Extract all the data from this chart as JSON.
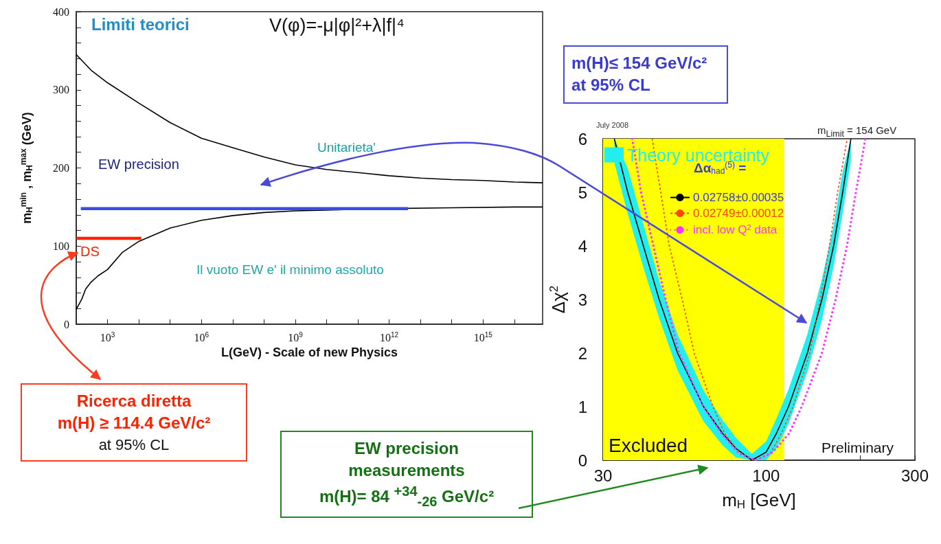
{
  "chart_data": [
    {
      "type": "line",
      "title": "Limiti teorici",
      "xlabel": "L(GeV) - Scale of new Physics",
      "ylabel": "m$_{H}$$^{min}$ , m$_{H}$$^{max}$ (GeV)",
      "log": "x",
      "xlim": [
        100,
        8e+16
      ],
      "xticks": [
        {
          "value": 100,
          "label": null
        },
        {
          "value": 1000,
          "label": "10$^{3}$"
        },
        {
          "value": 10000.0,
          "label": null
        },
        {
          "value": 100000.0,
          "label": null
        },
        {
          "value": 1000000.0,
          "label": "10$^{6}$"
        },
        {
          "value": 10000000.0,
          "label": null
        },
        {
          "value": 100000000.0,
          "label": null
        },
        {
          "value": 1000000000.0,
          "label": "10$^{9}$"
        },
        {
          "value": 10000000000.0,
          "label": null
        },
        {
          "value": 100000000000.0,
          "label": null
        },
        {
          "value": 1000000000000.0,
          "label": "10$^{12}$"
        },
        {
          "value": 10000000000000.0,
          "label": null
        },
        {
          "value": 100000000000000.0,
          "label": null
        },
        {
          "value": 1000000000000000.0,
          "label": "10$^{15}$"
        },
        {
          "value": 1e+16,
          "label": null
        }
      ],
      "ylim": [
        0,
        400
      ],
      "yticks": [
        0,
        {
          "value": 20,
          "label": null
        },
        {
          "value": 40,
          "label": null
        },
        {
          "value": 60,
          "label": null
        },
        {
          "value": 80,
          "label": null
        },
        100,
        {
          "value": 120,
          "label": null
        },
        {
          "value": 140,
          "label": null
        },
        {
          "value": 160,
          "label": null
        },
        {
          "value": 180,
          "label": null
        },
        200,
        {
          "value": 220,
          "label": null
        },
        {
          "value": 240,
          "label": null
        },
        {
          "value": 260,
          "label": null
        },
        {
          "value": 280,
          "label": null
        },
        300,
        {
          "value": 320,
          "label": null
        },
        {
          "value": 340,
          "label": null
        },
        {
          "value": 360,
          "label": null
        },
        {
          "value": 380,
          "label": null
        },
        400
      ],
      "grid": false,
      "marker": "none",
      "series": [
        {
          "color": "#000000",
          "line_style": "solid",
          "x": [
            100,
            300,
            1000,
            10000.0,
            100000.0,
            1000000.0,
            10000000.0,
            100000000.0,
            1000000000.0,
            10000000000.0,
            100000000000.0,
            1000000000000.0,
            10000000000000.0,
            100000000000000.0,
            1000000000000000.0,
            1e+16,
            8e+16
          ],
          "values": [
            345,
            325,
            309,
            283,
            258,
            238,
            226,
            214,
            204,
            198,
            194,
            190,
            187,
            185,
            184,
            182,
            181
          ]
        },
        {
          "color": "#000000",
          "line_style": "solid",
          "x": [
            100,
            150,
            200,
            300,
            500,
            1000,
            3000,
            10000.0,
            100000.0,
            1000000.0,
            10000000.0,
            100000000.0,
            1000000000.0,
            10000000000.0,
            1000000000000.0,
            100000000000000.0,
            1e+16,
            8e+16
          ],
          "values": [
            19,
            32,
            45,
            54,
            62,
            70,
            92,
            106,
            123,
            133,
            139,
            143,
            145,
            146,
            148,
            149,
            150,
            150
          ]
        },
        {
          "color": "#3a4de0",
          "line_style": "solid",
          "x": [
            140,
            4000000000000.0
          ],
          "values": [
            148,
            148
          ]
        },
        {
          "color": "#ff2200",
          "line_style": "solid",
          "x": [
            100,
            12000.0
          ],
          "values": [
            110,
            110
          ]
        }
      ],
      "annotations": [
        "V(φ)=-μ|φ|²+λ|f|⁴",
        "EW precision",
        "Unitarieta'",
        "DS",
        "Il vuoto EW e' il minimo assoluto",
        "Ricerca diretta\nm(H) ≥ 114.4 GeV/c²\nat 95% CL"
      ]
    },
    {
      "type": "line",
      "xlabel": "m$_{H}$ [GeV]",
      "ylabel": "Δχ$^{2}$",
      "log": "x",
      "xlim": [
        30,
        300
      ],
      "xticks": [
        30,
        {
          "value": 40,
          "label": null
        },
        {
          "value": 50,
          "label": null
        },
        {
          "value": 60,
          "label": null
        },
        {
          "value": 70,
          "label": null
        },
        {
          "value": 80,
          "label": null
        },
        {
          "value": 90,
          "label": null
        },
        100,
        {
          "value": 200,
          "label": null
        },
        300
      ],
      "ylim": [
        0,
        6
      ],
      "yticks": [
        0,
        {
          "value": 0.5,
          "label": null
        },
        1,
        {
          "value": 1.5,
          "label": null
        },
        2,
        {
          "value": 2.5,
          "label": null
        },
        3,
        {
          "value": 3.5,
          "label": null
        },
        4,
        {
          "value": 4.5,
          "label": null
        },
        5,
        {
          "value": 5.5,
          "label": null
        },
        6
      ],
      "grid": false,
      "marker": "none",
      "legend": "top",
      "legend_title": "Δα$_{had}$$^{(5)}$ =",
      "bands": [
        {
          "axis": "x",
          "from": 30,
          "to": 114.4,
          "label": "Excluded",
          "color": "#ffff00"
        }
      ],
      "series": [
        {
          "type": "area",
          "name": "Theory uncertainty",
          "color": "#22eeee"
        },
        {
          "name": "0.02758±0.00035",
          "color": "#000000",
          "line_style": "solid",
          "x": [
            32.6,
            36,
            40.4,
            45.4,
            52,
            63,
            72.5,
            80,
            90,
            100,
            107.9,
            118,
            135.6,
            151,
            164.6,
            176,
            187
          ],
          "values": [
            6,
            5,
            4,
            3,
            2,
            1,
            0.5,
            0.22,
            0,
            0.15,
            0.5,
            1,
            2,
            3,
            4,
            5,
            6
          ],
          "lower": [
            5.55,
            4.6,
            3.6,
            2.65,
            1.68,
            0.72,
            0.28,
            0.05,
            0,
            0,
            0.22,
            0.68,
            1.65,
            2.62,
            3.62,
            4.62,
            5.6
          ],
          "upper": [
            6,
            5.45,
            4.4,
            3.35,
            2.35,
            1.3,
            0.75,
            0.42,
            0.12,
            0.35,
            0.78,
            1.32,
            2.35,
            3.38,
            4.38,
            5.4,
            6
          ]
        },
        {
          "name": "0.02749±0.00012",
          "color": "#ff4411",
          "line_style": "dashed",
          "x": [
            43.1,
            48.9,
            53.8,
            58.8,
            67.5,
            73.6,
            82,
            92.6,
            103,
            112,
            122,
            138,
            149,
            159.6,
            169.6,
            182
          ],
          "values": [
            6,
            4,
            3,
            2,
            1,
            0.5,
            0.15,
            0,
            0.12,
            0.5,
            1,
            2,
            3,
            4,
            5,
            6
          ]
        },
        {
          "name": "incl. low Q$^{2}$ data",
          "color": "#ff33ff",
          "line_style": "dotted",
          "x": [
            37.2,
            39.7,
            43.5,
            47.6,
            52.6,
            62.9,
            71.9,
            82,
            92.6,
            105,
            118.5,
            130,
            151,
            167,
            181.6,
            194,
            208
          ],
          "values": [
            6,
            5,
            4,
            3,
            2,
            1,
            0.5,
            0.12,
            0,
            0.15,
            0.5,
            1,
            2,
            3,
            4,
            5,
            6
          ]
        }
      ],
      "annotations": [
        "July 2008",
        "m$_{Limit}$ = 154 GeV",
        "Preliminary",
        "m(H)≤ 154 GeV/c²\nat 95% CL",
        "EW precision\nmeasurements\nm(H)= 84 $^{+34}$$_{-26}$ GeV/c²"
      ]
    }
  ]
}
